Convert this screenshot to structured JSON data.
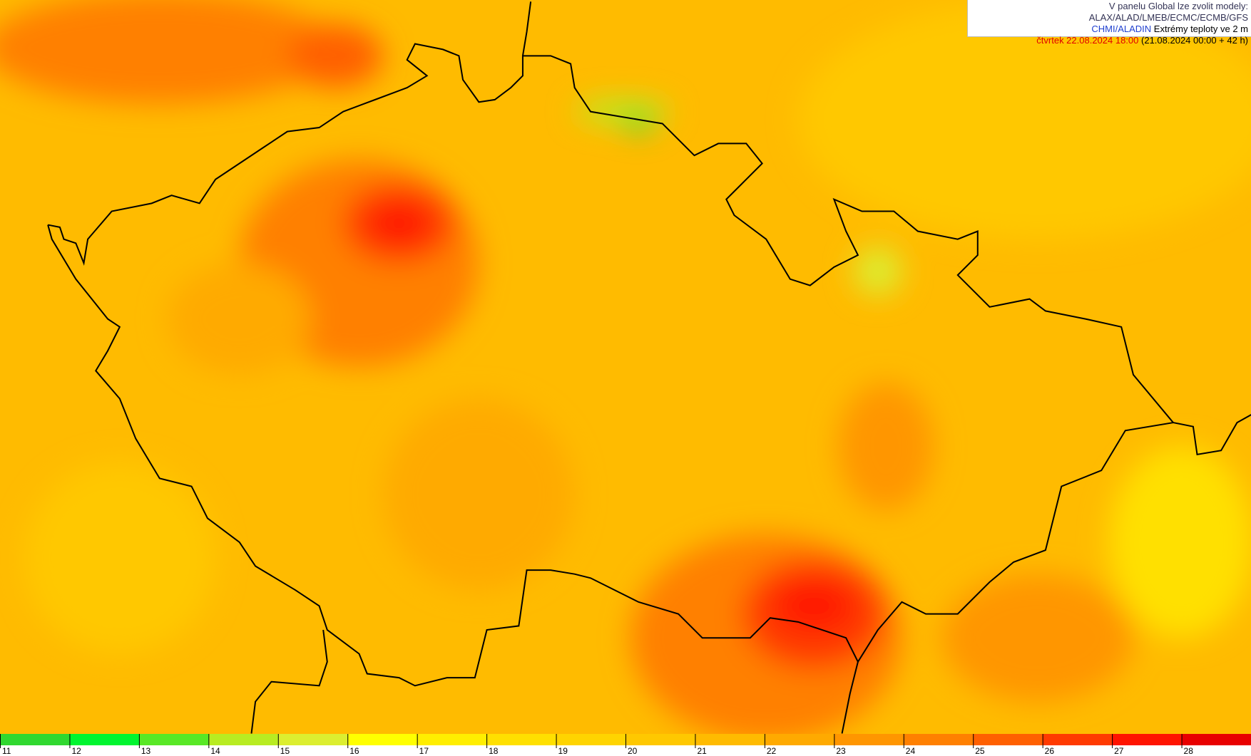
{
  "header": {
    "line1": "V panelu Global lze zvolit modely: ALAX/ALAD/LMEB/ECMC/ECMB/GFS",
    "model": "CHMI/ALADIN",
    "product": "Extrémy teploty ve 2 m",
    "valid": "čtvrtek 22.08.2024 18:00",
    "run": "(21.08.2024 00:00 + 42 h)"
  },
  "legend": {
    "values": [
      11,
      12,
      13,
      14,
      15,
      16,
      17,
      18,
      19,
      20,
      21,
      22,
      23,
      24,
      25,
      26,
      27,
      28
    ],
    "colors": [
      "#30d830",
      "#00f530",
      "#58e826",
      "#b8ec22",
      "#dcee30",
      "#ffff00",
      "#ffee00",
      "#ffe000",
      "#ffd400",
      "#ffc800",
      "#ffbb00",
      "#ffaa00",
      "#ff9600",
      "#ff8000",
      "#ff6000",
      "#ff3a00",
      "#ff1400",
      "#e80000"
    ]
  }
}
